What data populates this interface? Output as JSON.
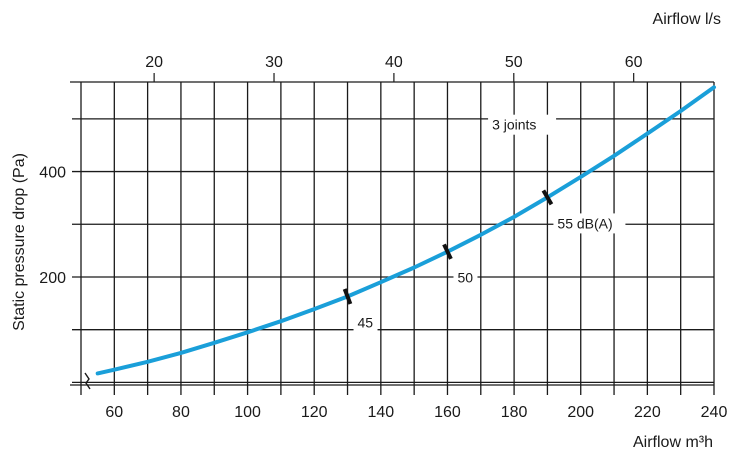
{
  "chart_data": {
    "type": "line",
    "title": "",
    "xlabel": "Airflow m³h",
    "ylabel": "Static pressure drop (Pa)",
    "x2label": "Airflow l/s",
    "xlim": [
      50,
      240
    ],
    "ylim": [
      -5,
      570
    ],
    "x2lim": [
      13.9,
      66.7
    ],
    "xticks": [
      60,
      80,
      100,
      120,
      140,
      160,
      180,
      200,
      220,
      240
    ],
    "yticks": [
      200,
      400
    ],
    "x2ticks": [
      20,
      30,
      40,
      50,
      60
    ],
    "xgrid": [
      50,
      60,
      70,
      80,
      90,
      100,
      110,
      120,
      130,
      140,
      150,
      160,
      170,
      180,
      190,
      200,
      210,
      220,
      230,
      240
    ],
    "ygrid": [
      0,
      100,
      200,
      300,
      400,
      500
    ],
    "grid": true,
    "axis_break": "y",
    "series": [
      {
        "color": "#1a9fd9",
        "x": [
          55,
          60,
          70,
          80,
          90,
          100,
          110,
          120,
          130,
          140,
          150,
          160,
          170,
          180,
          190,
          200,
          210,
          220,
          230,
          240
        ],
        "y": [
          17,
          24,
          39,
          56,
          75,
          95,
          116,
          139,
          163,
          190,
          218,
          248,
          280,
          314,
          351,
          390,
          430,
          472,
          515,
          560
        ]
      }
    ],
    "markers": [
      {
        "x": 130,
        "y": 163,
        "label": "45"
      },
      {
        "x": 160,
        "y": 248,
        "label": "50"
      },
      {
        "x": 190,
        "y": 351,
        "label": "55 dB(A)"
      }
    ],
    "annotations": [
      {
        "x": 192,
        "y": 470,
        "text": "3 joints"
      }
    ]
  }
}
